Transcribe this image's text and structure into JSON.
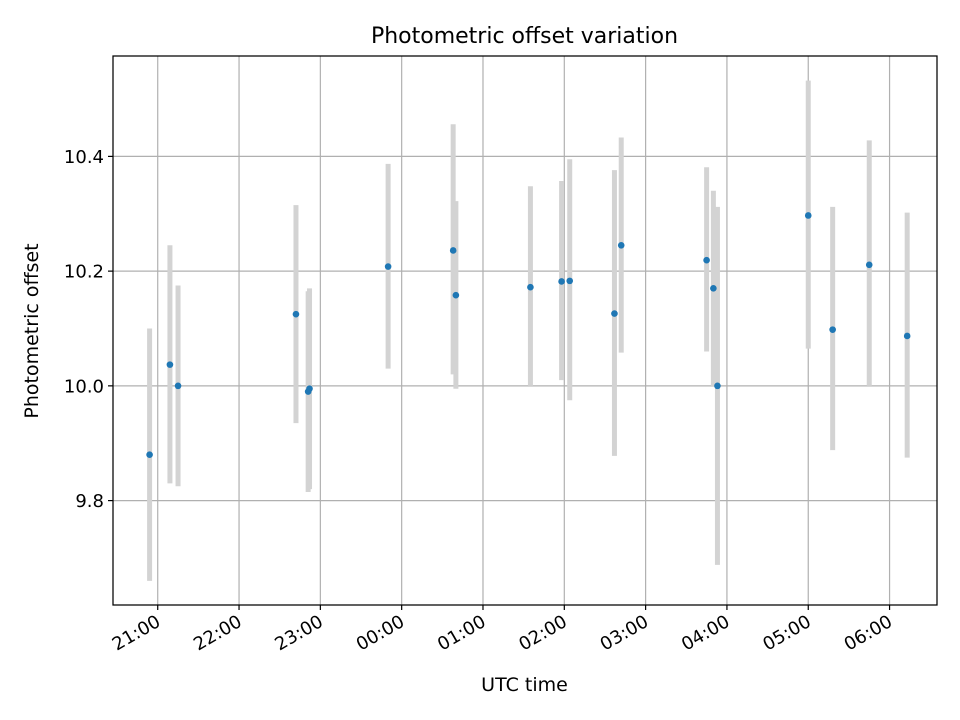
{
  "chart_data": {
    "type": "scatter",
    "title": "Photometric offset variation",
    "xlabel": "UTC time",
    "ylabel": "Photometric offset",
    "x_tick_labels": [
      "21:00",
      "22:00",
      "23:00",
      "00:00",
      "01:00",
      "02:00",
      "03:00",
      "04:00",
      "05:00",
      "06:00"
    ],
    "y_ticks": [
      9.8,
      10.0,
      10.2,
      10.4
    ],
    "y_tick_labels": [
      "9.8",
      "10.0",
      "10.2",
      "10.4"
    ],
    "xlim": [
      "20:27",
      "06:35"
    ],
    "ylim": [
      9.618,
      10.575
    ],
    "grid": true,
    "legend": "none",
    "colors": {
      "marker": "#1f77b4",
      "errorbar": "#d3d3d3",
      "grid": "#b0b0b0"
    },
    "points": [
      {
        "t": "20:54",
        "y": 9.88,
        "err_low": 9.66,
        "err_high": 10.1
      },
      {
        "t": "21:09",
        "y": 10.037,
        "err_low": 9.83,
        "err_high": 10.245
      },
      {
        "t": "21:15",
        "y": 10.0,
        "err_low": 9.825,
        "err_high": 10.175
      },
      {
        "t": "22:42",
        "y": 10.125,
        "err_low": 9.935,
        "err_high": 10.315
      },
      {
        "t": "22:51",
        "y": 9.99,
        "err_low": 9.815,
        "err_high": 10.165
      },
      {
        "t": "22:52",
        "y": 9.995,
        "err_low": 9.82,
        "err_high": 10.17
      },
      {
        "t": "23:50",
        "y": 10.208,
        "err_low": 10.03,
        "err_high": 10.387
      },
      {
        "t": "00:38",
        "y": 10.236,
        "err_low": 10.02,
        "err_high": 10.456
      },
      {
        "t": "00:40",
        "y": 10.158,
        "err_low": 9.995,
        "err_high": 10.322
      },
      {
        "t": "01:35",
        "y": 10.172,
        "err_low": 10.0,
        "err_high": 10.348
      },
      {
        "t": "01:58",
        "y": 10.182,
        "err_low": 10.01,
        "err_high": 10.357
      },
      {
        "t": "02:04",
        "y": 10.183,
        "err_low": 9.975,
        "err_high": 10.395
      },
      {
        "t": "02:37",
        "y": 10.126,
        "err_low": 9.878,
        "err_high": 10.376
      },
      {
        "t": "02:42",
        "y": 10.245,
        "err_low": 10.058,
        "err_high": 10.433
      },
      {
        "t": "03:45",
        "y": 10.219,
        "err_low": 10.06,
        "err_high": 10.381
      },
      {
        "t": "03:50",
        "y": 10.17,
        "err_low": 10.0,
        "err_high": 10.34
      },
      {
        "t": "03:53",
        "y": 10.0,
        "err_low": 9.688,
        "err_high": 10.312
      },
      {
        "t": "05:00",
        "y": 10.297,
        "err_low": 10.065,
        "err_high": 10.532
      },
      {
        "t": "05:18",
        "y": 10.098,
        "err_low": 9.888,
        "err_high": 10.312
      },
      {
        "t": "05:45",
        "y": 10.211,
        "err_low": 10.0,
        "err_high": 10.428
      },
      {
        "t": "06:13",
        "y": 10.087,
        "err_low": 9.875,
        "err_high": 10.302
      }
    ]
  }
}
